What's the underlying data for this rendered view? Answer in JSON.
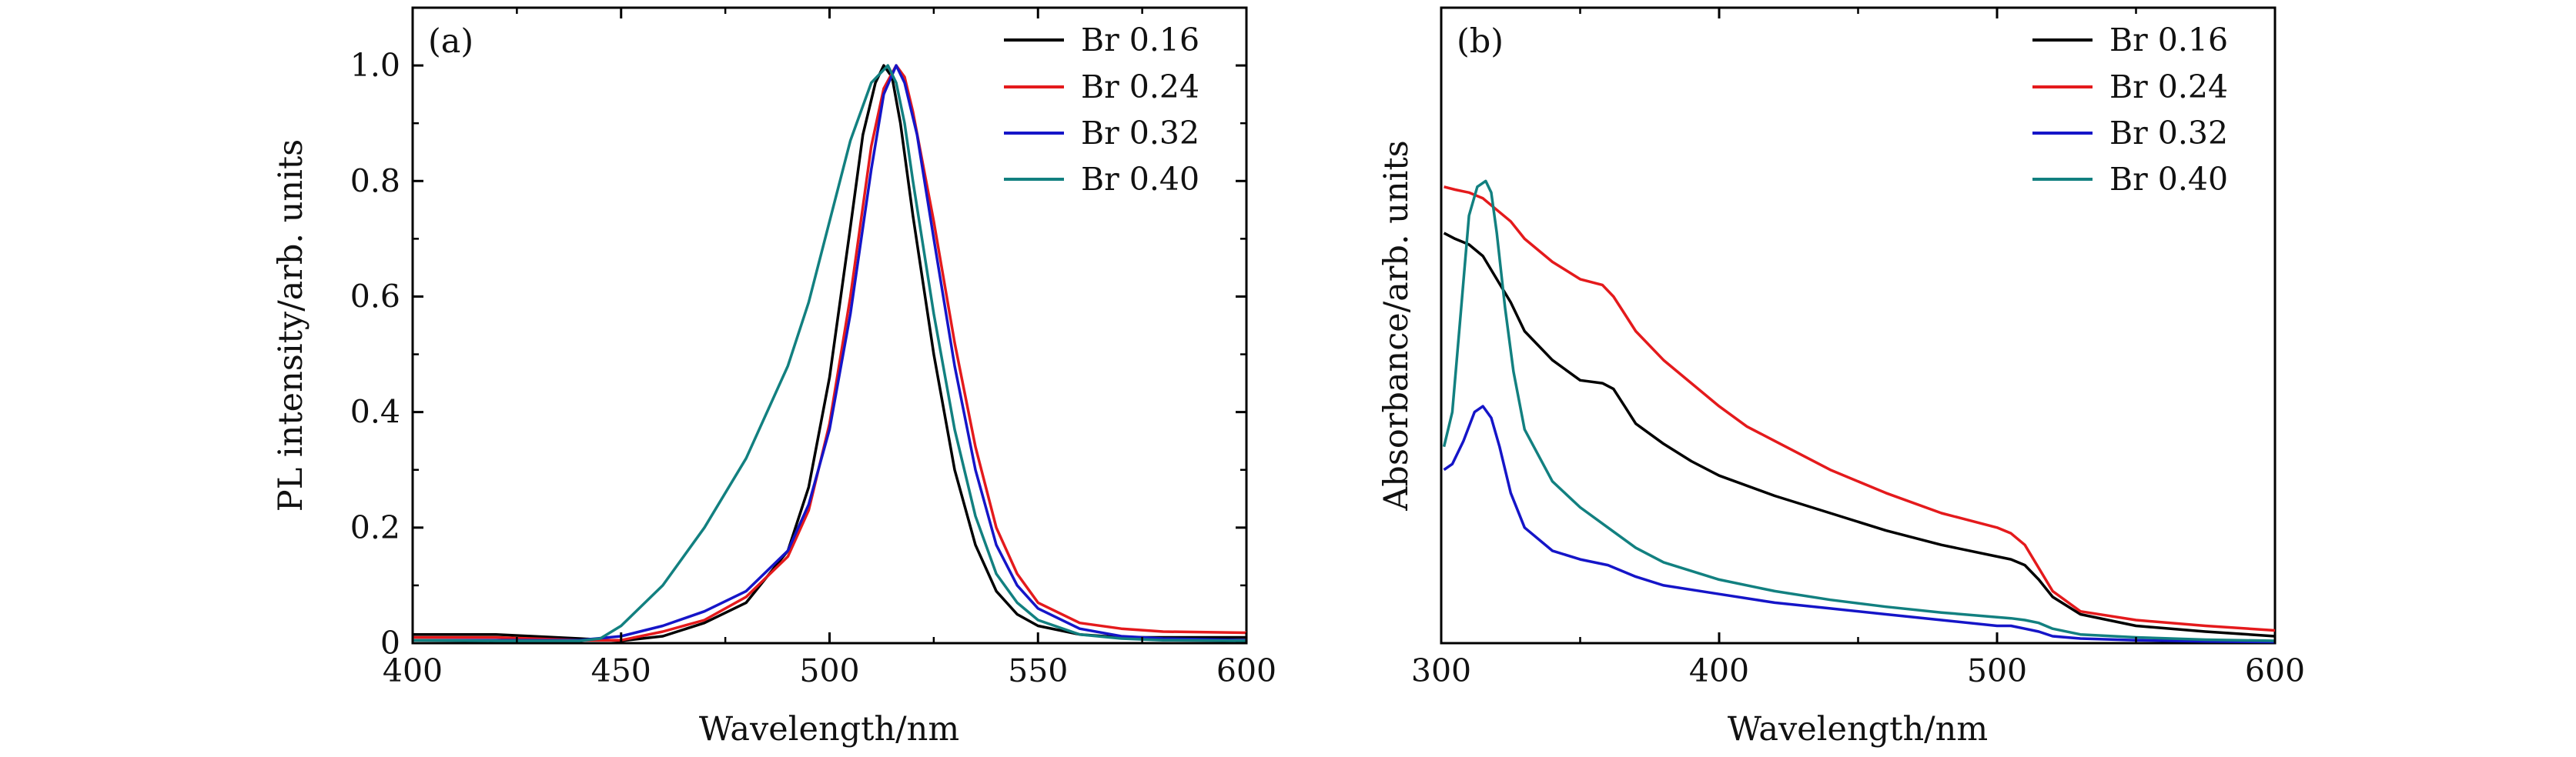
{
  "colors": {
    "Br 0.16": "#000000",
    "Br 0.24": "#e41a1c",
    "Br 0.32": "#1515c8",
    "Br 0.40": "#128080"
  },
  "chart_data": [
    {
      "type": "line",
      "panel_label": "(a)",
      "xlabel": "Wavelength/nm",
      "ylabel": "PL intensity/arb. units",
      "xlim": [
        400,
        600
      ],
      "ylim": [
        0,
        1.1
      ],
      "x_ticks": [
        400,
        450,
        500,
        550,
        600
      ],
      "y_ticks": [
        0,
        0.2,
        0.4,
        0.6,
        0.8,
        1.0
      ],
      "x_tick_labels": [
        "400",
        "450",
        "500",
        "550",
        "600"
      ],
      "y_tick_labels": [
        "0",
        "0.2",
        "0.4",
        "0.6",
        "0.8",
        "1.0"
      ],
      "legend_position": "top-right",
      "series": [
        {
          "name": "Br 0.16",
          "x": [
            400,
            420,
            440,
            450,
            460,
            470,
            480,
            490,
            495,
            500,
            505,
            508,
            511,
            513,
            515,
            517,
            520,
            525,
            530,
            535,
            540,
            545,
            550,
            560,
            570,
            580,
            600
          ],
          "y": [
            0.015,
            0.015,
            0.008,
            0.004,
            0.012,
            0.035,
            0.07,
            0.16,
            0.27,
            0.46,
            0.72,
            0.88,
            0.97,
            1.0,
            0.98,
            0.9,
            0.74,
            0.5,
            0.3,
            0.17,
            0.09,
            0.05,
            0.03,
            0.015,
            0.01,
            0.01,
            0.01
          ]
        },
        {
          "name": "Br 0.24",
          "x": [
            400,
            420,
            440,
            450,
            460,
            470,
            480,
            490,
            495,
            500,
            505,
            510,
            513,
            516,
            518,
            520,
            525,
            530,
            535,
            540,
            545,
            550,
            560,
            570,
            580,
            600
          ],
          "y": [
            0.01,
            0.01,
            0.005,
            0.005,
            0.02,
            0.04,
            0.08,
            0.15,
            0.23,
            0.38,
            0.6,
            0.86,
            0.96,
            1.0,
            0.98,
            0.92,
            0.73,
            0.52,
            0.34,
            0.2,
            0.12,
            0.07,
            0.035,
            0.025,
            0.02,
            0.018
          ]
        },
        {
          "name": "Br 0.32",
          "x": [
            400,
            420,
            440,
            450,
            460,
            470,
            480,
            490,
            495,
            500,
            505,
            510,
            513,
            516,
            518,
            521,
            525,
            530,
            535,
            540,
            545,
            550,
            560,
            570,
            580,
            600
          ],
          "y": [
            0.005,
            0.005,
            0.005,
            0.012,
            0.03,
            0.055,
            0.09,
            0.16,
            0.24,
            0.37,
            0.57,
            0.82,
            0.95,
            1.0,
            0.97,
            0.88,
            0.7,
            0.48,
            0.3,
            0.17,
            0.1,
            0.06,
            0.025,
            0.012,
            0.008,
            0.005
          ]
        },
        {
          "name": "Br 0.40",
          "x": [
            400,
            420,
            440,
            445,
            450,
            460,
            470,
            480,
            490,
            495,
            500,
            505,
            510,
            514,
            516,
            518,
            520,
            525,
            530,
            535,
            540,
            545,
            550,
            560,
            570,
            580,
            600
          ],
          "y": [
            0.005,
            0.004,
            0.004,
            0.008,
            0.03,
            0.1,
            0.2,
            0.32,
            0.48,
            0.59,
            0.73,
            0.87,
            0.97,
            1.0,
            0.97,
            0.9,
            0.8,
            0.57,
            0.37,
            0.22,
            0.12,
            0.07,
            0.04,
            0.015,
            0.008,
            0.005,
            0.004
          ]
        }
      ]
    },
    {
      "type": "line",
      "panel_label": "(b)",
      "xlabel": "Wavelength/nm",
      "ylabel": "Absorbance/arb. units",
      "xlim": [
        300,
        600
      ],
      "ylim": [
        0,
        1.1
      ],
      "x_ticks": [
        300,
        400,
        500,
        600
      ],
      "x_tick_labels": [
        "300",
        "400",
        "500",
        "600"
      ],
      "legend_position": "top-right",
      "series": [
        {
          "name": "Br 0.16",
          "x": [
            301,
            305,
            310,
            315,
            320,
            325,
            330,
            340,
            350,
            358,
            362,
            366,
            370,
            380,
            390,
            400,
            420,
            440,
            460,
            480,
            500,
            505,
            510,
            515,
            520,
            530,
            550,
            575,
            600
          ],
          "y": [
            0.71,
            0.7,
            0.69,
            0.67,
            0.63,
            0.59,
            0.54,
            0.49,
            0.455,
            0.45,
            0.44,
            0.41,
            0.38,
            0.345,
            0.315,
            0.29,
            0.255,
            0.225,
            0.195,
            0.17,
            0.15,
            0.145,
            0.135,
            0.11,
            0.08,
            0.05,
            0.03,
            0.02,
            0.012
          ]
        },
        {
          "name": "Br 0.24",
          "x": [
            301,
            305,
            310,
            315,
            320,
            325,
            330,
            340,
            350,
            358,
            362,
            366,
            370,
            380,
            390,
            400,
            410,
            420,
            440,
            460,
            480,
            500,
            505,
            510,
            515,
            520,
            530,
            550,
            575,
            600
          ],
          "y": [
            0.79,
            0.785,
            0.78,
            0.77,
            0.75,
            0.73,
            0.7,
            0.66,
            0.63,
            0.62,
            0.6,
            0.57,
            0.54,
            0.49,
            0.45,
            0.41,
            0.375,
            0.35,
            0.3,
            0.26,
            0.225,
            0.2,
            0.19,
            0.17,
            0.13,
            0.09,
            0.055,
            0.04,
            0.03,
            0.022
          ]
        },
        {
          "name": "Br 0.32",
          "x": [
            301,
            304,
            308,
            312,
            315,
            318,
            321,
            325,
            330,
            340,
            350,
            360,
            370,
            380,
            400,
            420,
            440,
            460,
            480,
            500,
            505,
            510,
            515,
            520,
            530,
            550,
            575,
            600
          ],
          "y": [
            0.3,
            0.31,
            0.35,
            0.4,
            0.41,
            0.39,
            0.34,
            0.26,
            0.2,
            0.16,
            0.145,
            0.135,
            0.115,
            0.1,
            0.085,
            0.07,
            0.06,
            0.05,
            0.04,
            0.03,
            0.03,
            0.025,
            0.02,
            0.012,
            0.008,
            0.005,
            0.003,
            0.002
          ]
        },
        {
          "name": "Br 0.40",
          "x": [
            301,
            304,
            307,
            310,
            313,
            316,
            318,
            320,
            323,
            326,
            330,
            340,
            350,
            360,
            370,
            380,
            400,
            420,
            440,
            460,
            480,
            500,
            505,
            510,
            515,
            520,
            530,
            550,
            575,
            600
          ],
          "y": [
            0.34,
            0.4,
            0.57,
            0.74,
            0.79,
            0.8,
            0.78,
            0.71,
            0.58,
            0.47,
            0.37,
            0.28,
            0.235,
            0.2,
            0.165,
            0.14,
            0.11,
            0.09,
            0.075,
            0.063,
            0.053,
            0.045,
            0.043,
            0.04,
            0.035,
            0.025,
            0.015,
            0.01,
            0.006,
            0.004
          ]
        }
      ]
    }
  ]
}
